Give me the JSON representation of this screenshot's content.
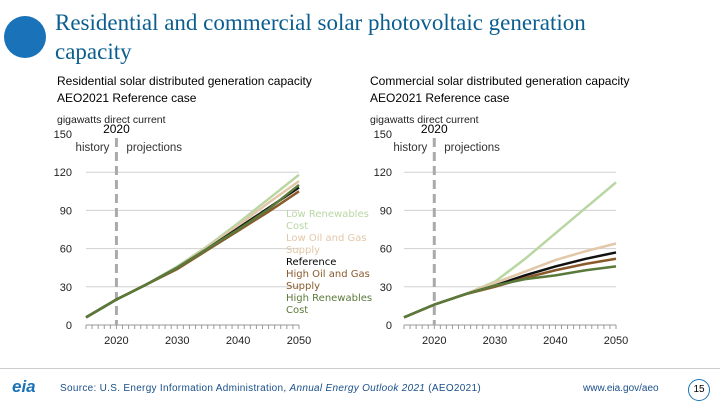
{
  "title": "Residential and commercial solar photovoltaic generation capacity",
  "footer": {
    "source_prefix": "Source: U.S. Energy Information Administration, ",
    "source_italic": "Annual Energy Outlook 2021",
    "source_suffix": " (AEO2021)",
    "url": "www.eia.gov/aeo",
    "page": "15",
    "logo": "eia"
  },
  "chart_data": [
    {
      "type": "line",
      "title": "Residential solar distributed generation capacity",
      "subtitle": "AEO2021 Reference case",
      "unit": "gigawatts direct current",
      "ylim": [
        0,
        150
      ],
      "yticks": [
        "0",
        "30",
        "60",
        "90",
        "120",
        "150"
      ],
      "xlim": [
        2014,
        2051
      ],
      "xticks": [
        "2020",
        "2030",
        "2040",
        "2050"
      ],
      "divider": {
        "year": "2020",
        "left": "history",
        "right": "projections"
      },
      "grid": true,
      "legend": "right",
      "x": [
        2015,
        2020,
        2025,
        2030,
        2035,
        2040,
        2045,
        2050
      ],
      "series": [
        {
          "name": "Low Renewables Cost",
          "color": "#b9d7a3",
          "values": [
            6,
            20,
            32,
            46,
            62,
            80,
            99,
            118
          ]
        },
        {
          "name": "Low Oil and Gas Supply",
          "color": "#e2c7a8",
          "values": [
            6,
            20,
            32,
            45,
            61,
            78,
            96,
            113
          ]
        },
        {
          "name": "Reference",
          "color": "#111111",
          "values": [
            6,
            20,
            32,
            45,
            60,
            76,
            92,
            108
          ]
        },
        {
          "name": "High Oil and Gas Supply",
          "color": "#8a5a2b",
          "values": [
            6,
            20,
            32,
            44,
            59,
            74,
            89,
            105
          ]
        },
        {
          "name": "High Renewables Cost",
          "color": "#5a7a3a",
          "values": [
            6,
            20,
            32,
            45,
            60,
            75,
            91,
            110
          ]
        }
      ]
    },
    {
      "type": "line",
      "title": "Commercial solar distributed generation capacity",
      "subtitle": "AEO2021 Reference case",
      "unit": "gigawatts direct current",
      "ylim": [
        0,
        150
      ],
      "yticks": [
        "0",
        "30",
        "60",
        "90",
        "120",
        "150"
      ],
      "xlim": [
        2014,
        2051
      ],
      "xticks": [
        "2020",
        "2030",
        "2040",
        "2050"
      ],
      "divider": {
        "year": "2020",
        "left": "history",
        "right": "projections"
      },
      "grid": true,
      "x": [
        2015,
        2020,
        2025,
        2030,
        2035,
        2040,
        2045,
        2050
      ],
      "series": [
        {
          "name": "Low Renewables Cost",
          "color": "#b9d7a3",
          "values": [
            6,
            16,
            24,
            34,
            52,
            72,
            92,
            112
          ]
        },
        {
          "name": "Low Oil and Gas Supply",
          "color": "#e2c7a8",
          "values": [
            6,
            16,
            24,
            33,
            42,
            51,
            58,
            64
          ]
        },
        {
          "name": "Reference",
          "color": "#111111",
          "values": [
            6,
            16,
            24,
            31,
            39,
            46,
            52,
            57
          ]
        },
        {
          "name": "High Oil and Gas Supply",
          "color": "#8a5a2b",
          "values": [
            6,
            16,
            24,
            30,
            37,
            43,
            48,
            52
          ]
        },
        {
          "name": "High Renewables Cost",
          "color": "#5a7a3a",
          "values": [
            6,
            16,
            24,
            31,
            36,
            39,
            43,
            46
          ]
        }
      ]
    }
  ]
}
